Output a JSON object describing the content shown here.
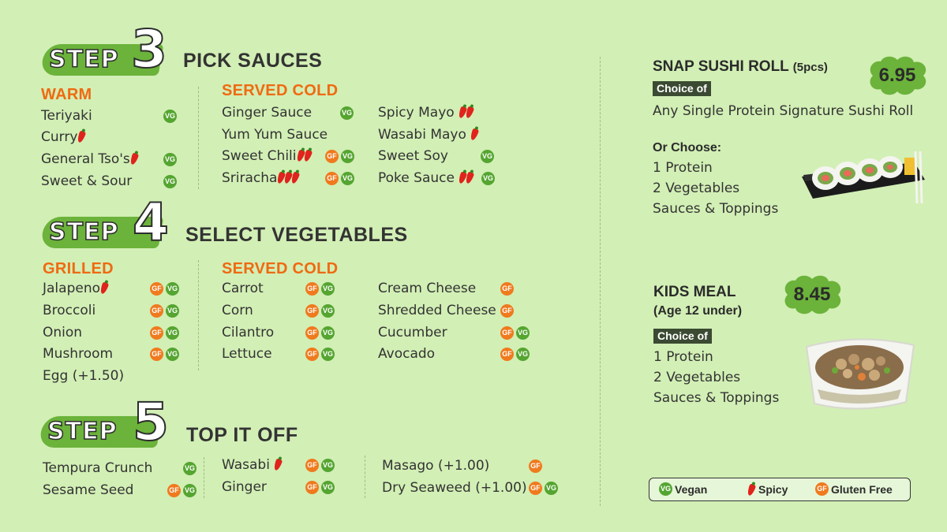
{
  "step_label": "STEP",
  "step3": {
    "number": "3",
    "title": "PICK SAUCES",
    "warm_label": "WARM",
    "warm": [
      "Teriyaki",
      "Curry",
      "General Tso's",
      "Sweet & Sour"
    ],
    "cold_label": "SERVED COLD",
    "cold_col1": [
      "Ginger Sauce",
      "Yum Yum Sauce",
      "Sweet Chili",
      "Sriracha"
    ],
    "cold_col2": [
      "Spicy Mayo",
      "Wasabi Mayo",
      "Sweet Soy",
      "Poke Sauce"
    ]
  },
  "step4": {
    "number": "4",
    "title": "SELECT VEGETABLES",
    "grilled_label": "GRILLED",
    "grilled": [
      "Jalapeno",
      "Broccoli",
      "Onion",
      "Mushroom",
      "Egg (+1.50)"
    ],
    "cold_label": "SERVED COLD",
    "cold_col1": [
      "Carrot",
      "Corn",
      "Cilantro",
      "Lettuce"
    ],
    "cold_col2": [
      "Cream Cheese",
      "Shredded Cheese",
      "Cucumber",
      "Avocado"
    ]
  },
  "step5": {
    "number": "5",
    "title": "TOP IT OFF",
    "col1": [
      "Tempura Crunch",
      "Sesame Seed"
    ],
    "col2": [
      "Wasabi",
      "Ginger"
    ],
    "col3": [
      "Masago (+1.00)",
      "Dry Seaweed (+1.00)"
    ]
  },
  "sushi": {
    "title": "SNAP SUSHI ROLL",
    "subtitle": "(5pcs)",
    "price": "6.95",
    "choice_label": "Choice of",
    "line1": "Any Single Protein Signature Sushi Roll",
    "or_label": "Or  Choose:",
    "options": [
      "1 Protein",
      "2 Vegetables",
      "Sauces & Toppings"
    ]
  },
  "kids": {
    "title": "KIDS MEAL",
    "subtitle": "(Age 12 under)",
    "price": "8.45",
    "choice_label": "Choice of",
    "options": [
      "1 Protein",
      "2 Vegetables",
      "Sauces & Toppings"
    ]
  },
  "badges": {
    "vg": "VG",
    "gf": "GF"
  },
  "legend": {
    "vegan": "Vegan",
    "spicy": "Spicy",
    "gluten_free": "Gluten Free"
  },
  "colors": {
    "background": "#d2efb5",
    "accent_green": "#6bb33a",
    "accent_orange": "#ef6a12"
  }
}
